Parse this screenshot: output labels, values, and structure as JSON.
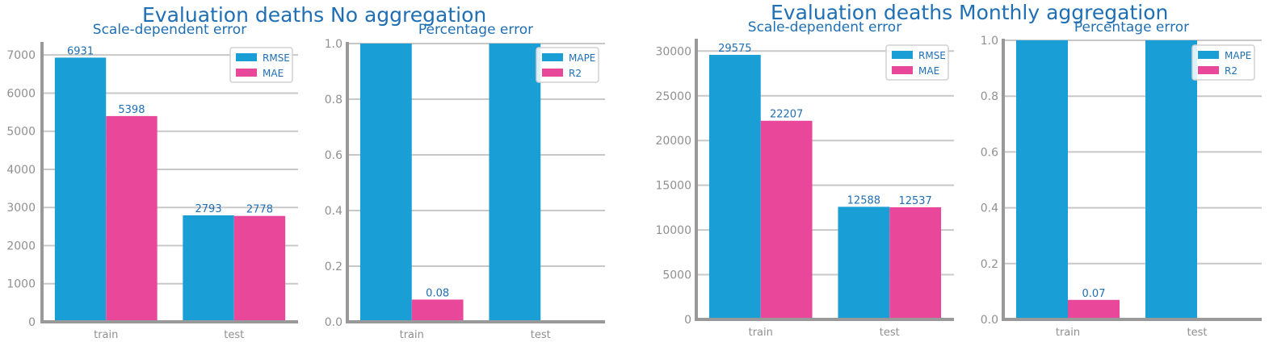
{
  "figures": [
    {
      "title": "Evaluation deaths No aggregation"
    },
    {
      "title": "Evaluation deaths Monthly aggregation"
    }
  ],
  "colors": {
    "series_a": "#199ed6",
    "series_b": "#e9489a",
    "title": "#1f6fb4",
    "tick": "#909090",
    "grid": "#c8c8c8",
    "axis": "#999999"
  },
  "chart_data": [
    {
      "type": "bar",
      "title": "Scale-dependent error",
      "categories": [
        "train",
        "test"
      ],
      "series": [
        {
          "name": "RMSE",
          "values": [
            6931,
            2793
          ],
          "labels": [
            "6931",
            "2793"
          ]
        },
        {
          "name": "MAE",
          "values": [
            5398,
            2778
          ],
          "labels": [
            "5398",
            "2778"
          ]
        }
      ],
      "ylim": [
        0,
        7300
      ],
      "yticks": [
        0,
        1000,
        2000,
        3000,
        4000,
        5000,
        6000,
        7000
      ],
      "ytick_labels": [
        "0",
        "1000",
        "2000",
        "3000",
        "4000",
        "5000",
        "6000",
        "7000"
      ],
      "grid": "horizontal",
      "legend": "top-right"
    },
    {
      "type": "bar",
      "title": "Percentage error",
      "categories": [
        "train",
        "test"
      ],
      "series": [
        {
          "name": "MAPE",
          "values": [
            1.0,
            1.0
          ],
          "labels": [
            "",
            ""
          ]
        },
        {
          "name": "R2",
          "values": [
            0.08,
            0
          ],
          "labels": [
            "0.08",
            ""
          ]
        }
      ],
      "ylim": [
        0,
        1.0
      ],
      "yticks": [
        0.0,
        0.2,
        0.4,
        0.6,
        0.8,
        1.0
      ],
      "ytick_labels": [
        "0.0",
        "0.2",
        "0.4",
        "0.6",
        "0.8",
        "1.0"
      ],
      "grid": "horizontal",
      "legend": "top-right"
    },
    {
      "type": "bar",
      "title": "Scale-dependent error",
      "categories": [
        "train",
        "test"
      ],
      "series": [
        {
          "name": "RMSE",
          "values": [
            29575,
            12588
          ],
          "labels": [
            "29575",
            "12588"
          ]
        },
        {
          "name": "MAE",
          "values": [
            22207,
            12537
          ],
          "labels": [
            "22207",
            "12537"
          ]
        }
      ],
      "ylim": [
        0,
        31200
      ],
      "yticks": [
        0,
        5000,
        10000,
        15000,
        20000,
        25000,
        30000
      ],
      "ytick_labels": [
        "0",
        "5000",
        "10000",
        "15000",
        "20000",
        "25000",
        "30000"
      ],
      "grid": "horizontal",
      "legend": "top-right"
    },
    {
      "type": "bar",
      "title": "Percentage error",
      "categories": [
        "train",
        "test"
      ],
      "series": [
        {
          "name": "MAPE",
          "values": [
            1.0,
            1.0
          ],
          "labels": [
            "",
            ""
          ]
        },
        {
          "name": "R2",
          "values": [
            0.07,
            0
          ],
          "labels": [
            "0.07",
            ""
          ]
        }
      ],
      "ylim": [
        0,
        1.0
      ],
      "yticks": [
        0.0,
        0.2,
        0.4,
        0.6,
        0.8,
        1.0
      ],
      "ytick_labels": [
        "0.0",
        "0.2",
        "0.4",
        "0.6",
        "0.8",
        "1.0"
      ],
      "grid": "horizontal",
      "legend": "top-right"
    }
  ]
}
